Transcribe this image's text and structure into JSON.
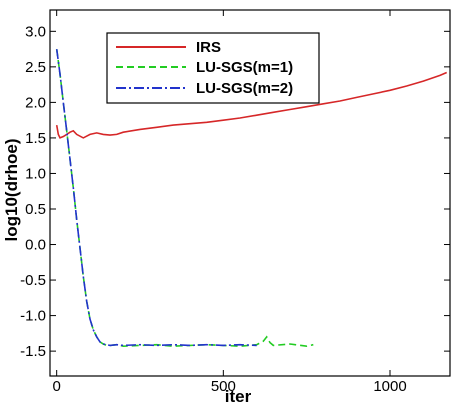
{
  "chart_data": {
    "type": "line",
    "title": "",
    "xlabel": "iter",
    "ylabel": "log10(drhoe)",
    "xlim": [
      -20,
      1180
    ],
    "ylim": [
      -1.85,
      3.3
    ],
    "xticks": [
      0,
      500,
      1000
    ],
    "yticks": [
      -1.5,
      -1.0,
      -0.5,
      0.0,
      0.5,
      1.0,
      1.5,
      2.0,
      2.5,
      3.0
    ],
    "ytick_labels": [
      "-1.5",
      "-1.0",
      "-0.5",
      "0.0",
      "0.5",
      "1.0",
      "1.5",
      "2.0",
      "2.5",
      "3.0"
    ],
    "grid": false,
    "legend_position": "top-center",
    "series": [
      {
        "name": "IRS",
        "color": "#d62728",
        "style": "solid",
        "x": [
          0,
          5,
          10,
          20,
          30,
          40,
          50,
          60,
          80,
          100,
          120,
          140,
          160,
          180,
          200,
          250,
          300,
          350,
          400,
          450,
          500,
          550,
          600,
          650,
          700,
          750,
          800,
          850,
          900,
          950,
          1000,
          1050,
          1100,
          1150,
          1170
        ],
        "y": [
          1.68,
          1.55,
          1.5,
          1.52,
          1.55,
          1.58,
          1.6,
          1.55,
          1.5,
          1.55,
          1.57,
          1.55,
          1.54,
          1.55,
          1.58,
          1.62,
          1.65,
          1.68,
          1.7,
          1.72,
          1.75,
          1.78,
          1.82,
          1.86,
          1.9,
          1.94,
          1.98,
          2.02,
          2.07,
          2.12,
          2.17,
          2.23,
          2.3,
          2.38,
          2.42
        ]
      },
      {
        "name": "LU-SGS(m=1)",
        "color": "#22cc22",
        "style": "dashed",
        "x": [
          0,
          10,
          20,
          30,
          40,
          50,
          60,
          70,
          80,
          90,
          100,
          110,
          120,
          130,
          140,
          150,
          160,
          180,
          200,
          250,
          300,
          350,
          400,
          450,
          500,
          550,
          600,
          620,
          630,
          640,
          650,
          700,
          750,
          770
        ],
        "y": [
          2.75,
          2.4,
          2.0,
          1.6,
          1.2,
          0.8,
          0.35,
          -0.05,
          -0.45,
          -0.8,
          -1.05,
          -1.2,
          -1.3,
          -1.37,
          -1.4,
          -1.42,
          -1.42,
          -1.41,
          -1.43,
          -1.42,
          -1.41,
          -1.43,
          -1.42,
          -1.41,
          -1.42,
          -1.43,
          -1.41,
          -1.36,
          -1.3,
          -1.38,
          -1.42,
          -1.4,
          -1.43,
          -1.41
        ]
      },
      {
        "name": "LU-SGS(m=2)",
        "color": "#2233cc",
        "style": "dashdot",
        "x": [
          0,
          10,
          20,
          30,
          40,
          50,
          60,
          70,
          80,
          90,
          100,
          110,
          120,
          130,
          140,
          150,
          160,
          180,
          200,
          250,
          300,
          350,
          400,
          450,
          500,
          550,
          600
        ],
        "y": [
          2.75,
          2.4,
          2.0,
          1.6,
          1.2,
          0.8,
          0.35,
          -0.05,
          -0.45,
          -0.8,
          -1.05,
          -1.2,
          -1.3,
          -1.37,
          -1.4,
          -1.41,
          -1.42,
          -1.41,
          -1.42,
          -1.41,
          -1.42,
          -1.41,
          -1.42,
          -1.41,
          -1.42,
          -1.41,
          -1.42
        ]
      }
    ]
  }
}
